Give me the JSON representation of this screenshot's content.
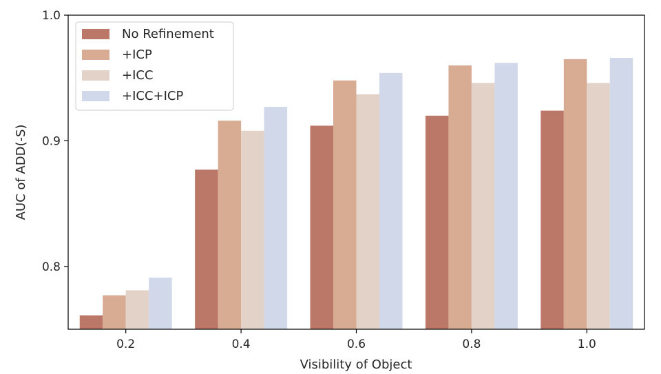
{
  "chart_data": {
    "type": "bar",
    "xlabel": "Visibility of Object",
    "ylabel": "AUC of ADD(-S)",
    "categories": [
      "0.2",
      "0.4",
      "0.6",
      "0.8",
      "1.0"
    ],
    "ylim": [
      0.75,
      1.0
    ],
    "yticks": [
      "0.8",
      "0.9",
      "1.0"
    ],
    "grid": false,
    "legend_position": "top-left",
    "series": [
      {
        "name": "No Refinement",
        "color": "#bb7767",
        "values": [
          0.761,
          0.877,
          0.912,
          0.92,
          0.924
        ]
      },
      {
        "name": "+ICP",
        "color": "#d8ab93",
        "values": [
          0.777,
          0.916,
          0.948,
          0.96,
          0.965
        ]
      },
      {
        "name": "+ICC",
        "color": "#e3d2c8",
        "values": [
          0.781,
          0.908,
          0.937,
          0.946,
          0.946
        ]
      },
      {
        "name": "+ICC+ICP",
        "color": "#d1d8e9",
        "values": [
          0.791,
          0.927,
          0.954,
          0.962,
          0.966
        ]
      }
    ]
  }
}
